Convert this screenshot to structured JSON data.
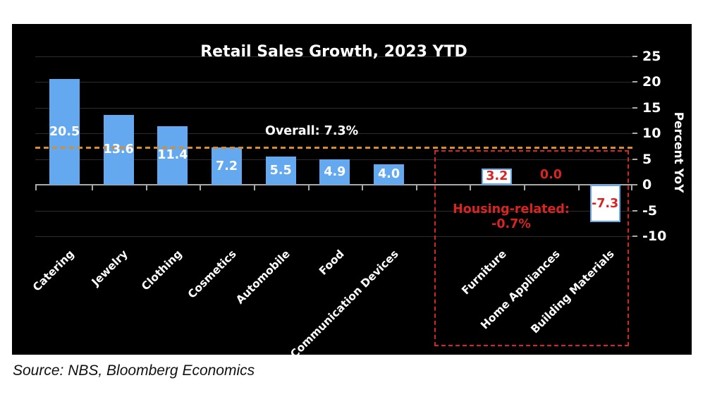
{
  "page": {
    "source": "Source: NBS, Bloomberg Economics"
  },
  "chart_data": {
    "type": "bar",
    "title": "Retail Sales Growth, 2023 YTD",
    "ylabel_right": "Percent YoY",
    "yticks": [
      25,
      20,
      15,
      10,
      5,
      0,
      -5,
      -10
    ],
    "ylim": [
      -10.8,
      27.5
    ],
    "grid": true,
    "legend_position": "none",
    "colors": {
      "bar_blue": "#64a8f0",
      "housing_fill": "#ffffff",
      "housing_border": "#64a8f0",
      "red": "#d92424",
      "overall_orange": "#d98c2a",
      "background": "#000000",
      "gridline": "#2d2d2d",
      "axis": "#a9a9a9",
      "text": "#ffffff"
    },
    "bars": [
      {
        "category": "Catering",
        "value": 20.5,
        "slot": 0,
        "housing": false
      },
      {
        "category": "Jewelry",
        "value": 13.6,
        "slot": 1,
        "housing": false
      },
      {
        "category": "Clothing",
        "value": 11.4,
        "slot": 2,
        "housing": false
      },
      {
        "category": "Cosmetics",
        "value": 7.2,
        "slot": 3,
        "housing": false
      },
      {
        "category": "Automobile",
        "value": 5.5,
        "slot": 4,
        "housing": false
      },
      {
        "category": "Food",
        "value": 4.9,
        "slot": 5,
        "housing": false
      },
      {
        "category": "Communication Devices",
        "value": 4.0,
        "slot": 6,
        "housing": false
      },
      {
        "category": "Furniture",
        "value": 3.2,
        "slot": 8,
        "housing": true
      },
      {
        "category": "Home Appliances",
        "value": 0.0,
        "slot": 9,
        "housing": true
      },
      {
        "category": "Building Materials",
        "value": -7.3,
        "slot": 10,
        "housing": true
      }
    ],
    "overall_line": {
      "label": "Overall: 7.3%",
      "value": 7.3
    },
    "housing_box": {
      "label_line1": "Housing-related:",
      "label_line2": "-0.7%",
      "value": -0.7
    }
  }
}
